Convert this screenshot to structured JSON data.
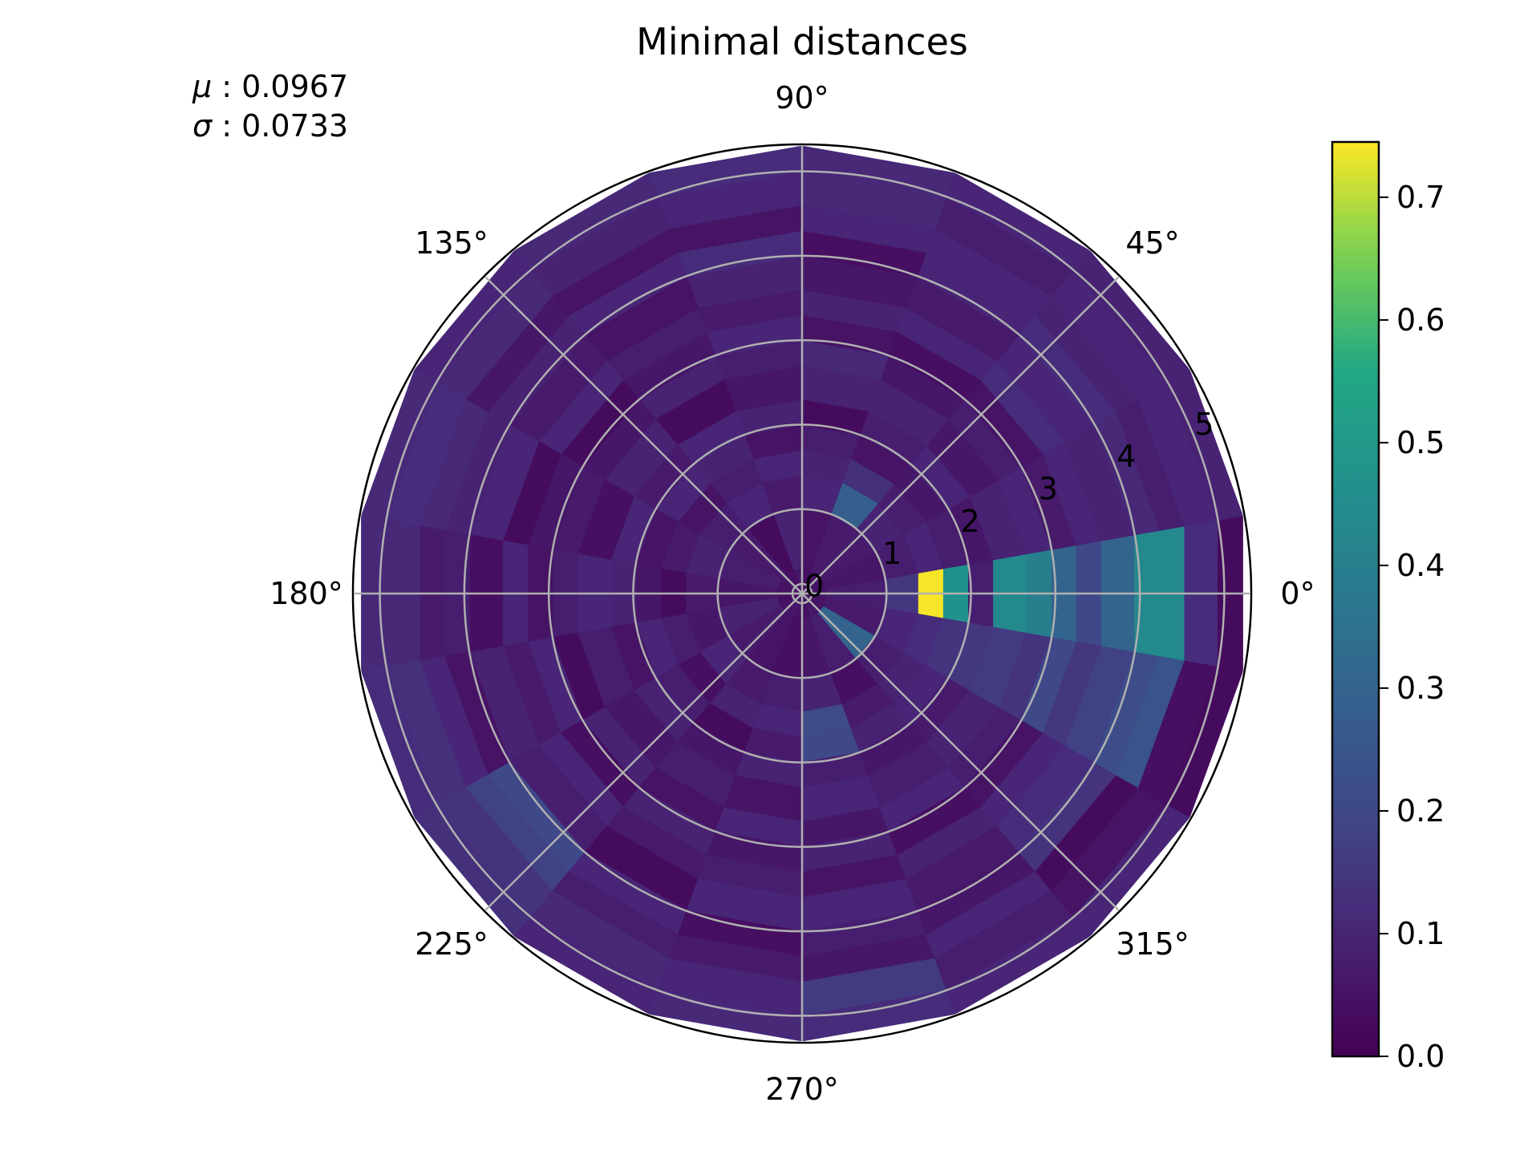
{
  "chart_data": {
    "type": "heatmap",
    "projection": "polar",
    "title": "Minimal distances",
    "stats": [
      {
        "symbol": "μ",
        "value": "0.0967"
      },
      {
        "symbol": "σ",
        "value": "0.0733"
      }
    ],
    "angle_tick_labels": [
      "0°",
      "45°",
      "90°",
      "135°",
      "180°",
      "225°",
      "270°",
      "315°"
    ],
    "radius_tick_labels": [
      "0",
      "1",
      "2",
      "3",
      "4",
      "5"
    ],
    "rlim": [
      0,
      5.3
    ],
    "grid": true,
    "colormap": "viridis",
    "colorbar": {
      "range": [
        0.0,
        0.745
      ],
      "ticks": [
        "0.0",
        "0.1",
        "0.2",
        "0.3",
        "0.4",
        "0.5",
        "0.6",
        "0.7"
      ],
      "position": "right"
    },
    "theta_bins_deg": 20,
    "radius_bins": [
      0,
      0.3,
      1.0,
      1.4,
      1.7,
      2.0,
      2.3,
      2.7,
      3.0,
      3.3,
      3.6,
      4.0,
      4.3,
      4.6,
      5.0,
      5.3
    ],
    "values": [
      [
        0.05,
        0.08,
        0.15,
        0.74,
        0.47,
        0.08,
        0.44,
        0.4,
        0.3,
        0.2,
        0.3,
        0.44,
        0.44,
        0.12,
        0.03
      ],
      [
        0.05,
        0.06,
        0.08,
        0.1,
        0.08,
        0.06,
        0.09,
        0.1,
        0.07,
        0.1,
        0.09,
        0.11,
        0.08,
        0.1,
        0.09
      ],
      [
        0.06,
        0.07,
        0.09,
        0.08,
        0.06,
        0.1,
        0.06,
        0.08,
        0.05,
        0.12,
        0.1,
        0.12,
        0.09,
        0.1,
        0.09
      ],
      [
        0.05,
        0.07,
        0.28,
        0.13,
        0.05,
        0.08,
        0.09,
        0.06,
        0.04,
        0.1,
        0.07,
        0.1,
        0.1,
        0.08,
        0.1
      ],
      [
        0.04,
        0.05,
        0.1,
        0.09,
        0.08,
        0.03,
        0.09,
        0.11,
        0.05,
        0.09,
        0.06,
        0.04,
        0.1,
        0.11,
        0.11
      ],
      [
        0.06,
        0.09,
        0.07,
        0.1,
        0.05,
        0.09,
        0.06,
        0.08,
        0.1,
        0.07,
        0.09,
        0.12,
        0.05,
        0.1,
        0.12
      ],
      [
        0.04,
        0.03,
        0.1,
        0.08,
        0.09,
        0.1,
        0.03,
        0.09,
        0.06,
        0.08,
        0.05,
        0.1,
        0.05,
        0.09,
        0.11
      ],
      [
        0.06,
        0.07,
        0.08,
        0.05,
        0.1,
        0.07,
        0.09,
        0.06,
        0.03,
        0.1,
        0.07,
        0.09,
        0.06,
        0.11,
        0.1
      ],
      [
        0.05,
        0.08,
        0.09,
        0.07,
        0.05,
        0.1,
        0.04,
        0.07,
        0.06,
        0.03,
        0.1,
        0.09,
        0.11,
        0.12,
        0.11
      ],
      [
        0.05,
        0.06,
        0.07,
        0.03,
        0.06,
        0.09,
        0.1,
        0.08,
        0.05,
        0.1,
        0.04,
        0.08,
        0.07,
        0.11,
        0.11
      ],
      [
        0.04,
        0.09,
        0.06,
        0.08,
        0.1,
        0.05,
        0.08,
        0.03,
        0.1,
        0.07,
        0.09,
        0.05,
        0.1,
        0.13,
        0.12
      ],
      [
        0.05,
        0.07,
        0.1,
        0.04,
        0.08,
        0.09,
        0.06,
        0.09,
        0.04,
        0.1,
        0.08,
        0.2,
        0.18,
        0.14,
        0.13
      ],
      [
        0.06,
        0.05,
        0.07,
        0.09,
        0.03,
        0.06,
        0.08,
        0.05,
        0.09,
        0.07,
        0.03,
        0.1,
        0.08,
        0.11,
        0.1
      ],
      [
        0.05,
        0.04,
        0.08,
        0.1,
        0.07,
        0.09,
        0.05,
        0.1,
        0.06,
        0.08,
        0.1,
        0.04,
        0.07,
        0.1,
        0.11
      ],
      [
        0.04,
        0.06,
        0.09,
        0.21,
        0.2,
        0.08,
        0.1,
        0.06,
        0.09,
        0.05,
        0.1,
        0.08,
        0.06,
        0.16,
        0.12
      ],
      [
        0.06,
        0.08,
        0.04,
        0.07,
        0.09,
        0.06,
        0.08,
        0.1,
        0.04,
        0.09,
        0.07,
        0.06,
        0.1,
        0.08,
        0.1
      ],
      [
        0.05,
        0.3,
        0.08,
        0.09,
        0.1,
        0.07,
        0.09,
        0.08,
        0.05,
        0.1,
        0.12,
        0.14,
        0.03,
        0.05,
        0.1
      ],
      [
        0.05,
        0.07,
        0.1,
        0.12,
        0.14,
        0.15,
        0.16,
        0.14,
        0.2,
        0.15,
        0.18,
        0.22,
        0.24,
        0.04,
        0.03
      ]
    ]
  }
}
